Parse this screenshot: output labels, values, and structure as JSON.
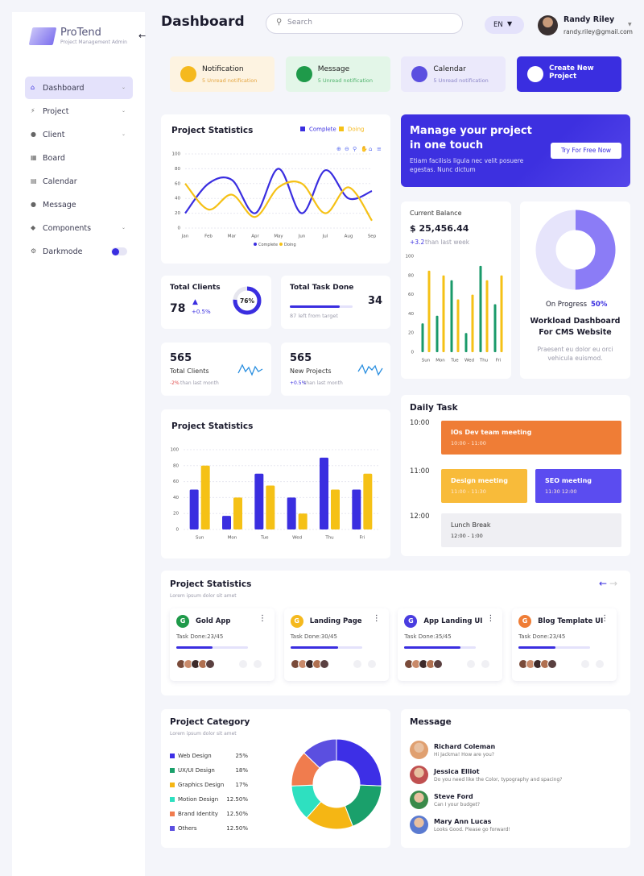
{
  "sidebar": {
    "logo": "ProTend",
    "logo_subtitle": "Project Management Admin",
    "nav": [
      "Dashboard",
      "Project",
      "Client",
      "Board",
      "Calendar",
      "Message",
      "Components",
      "Darkmode"
    ]
  },
  "header": {
    "title": "Dashboard",
    "search_placeholder": "Search",
    "language": "EN",
    "user_name": "Randy Riley",
    "user_email": "randy.riley@gmail.com"
  },
  "quick_cards": [
    {
      "title": "Notification",
      "subtitle": "5 Unread notification"
    },
    {
      "title": "Message",
      "subtitle": "5 Unread notification"
    },
    {
      "title": "Calendar",
      "subtitle": "5 Unread notification"
    },
    {
      "title": "Create New Project"
    }
  ],
  "banner": {
    "title": "Manage your project in one touch",
    "text": "Etiam facilisis ligula nec velit posuere egestas. Nunc dictum",
    "button": "Try For Free Now"
  },
  "stats": {
    "total_clients": {
      "title": "Total Clients",
      "value": 78,
      "change": "+0.5%",
      "percent": 76,
      "percent_label": "76%"
    },
    "task_done": {
      "title": "Total Task Done",
      "value": 34,
      "note": "87 left from target"
    },
    "clients_trend": {
      "value": 565,
      "title": "Total Clients",
      "change": "-2%",
      "note": "than last month"
    },
    "projects_trend": {
      "value": 565,
      "title": "New Projects",
      "change": "+0.5%",
      "note": "than last month"
    }
  },
  "balance": {
    "label": "Current Balance",
    "amount": "$ 25,456.44",
    "change": "+3.2",
    "note": "than last week"
  },
  "workload": {
    "status": "On Progress",
    "progress": 50,
    "progress_label": "50%",
    "title": "Workload Dashboard For CMS Website",
    "text": "Praesent eu dolor eu orci vehicula euismod."
  },
  "daily_task": {
    "title": "Daily Task",
    "times": [
      "10:00",
      "11:00",
      "12:00"
    ],
    "events": [
      {
        "title": "IOs Dev team meeting",
        "time": "10:00 - 11:00"
      },
      {
        "title": "Design meeting",
        "time": "11:00 - 11:30"
      },
      {
        "title": "SEO meeting",
        "time": "11:30 12:00"
      },
      {
        "title": "Lunch Break",
        "time": "12:00 - 1:00"
      }
    ]
  },
  "projects": {
    "title": "Project Statistics",
    "subtitle": "Lorem ipsum dolor sit amet",
    "cards": [
      {
        "initial": "G",
        "name": "Gold App",
        "task_label": "Task Done:23/45",
        "done": 23,
        "total": 45,
        "color": "#1f9a4a"
      },
      {
        "initial": "G",
        "name": "Landing Page",
        "task_label": "Task Done:30/45",
        "done": 30,
        "total": 45,
        "color": "#f5b91e"
      },
      {
        "initial": "G",
        "name": "App Landing UI",
        "task_label": "Task Done:35/45",
        "done": 35,
        "total": 45,
        "color": "#4a3de0"
      },
      {
        "initial": "G",
        "name": "Blog Template UI",
        "task_label": "Task Done:23/45",
        "done": 23,
        "total": 45,
        "color": "#ef7d36"
      }
    ]
  },
  "messages": {
    "title": "Message",
    "items": [
      {
        "name": "Richard Coleman",
        "text": "Hi Jackma! How are you?"
      },
      {
        "name": "Jessica Elliot",
        "text": "Do you need like the Color, typography and spacing?"
      },
      {
        "name": "Steve Ford",
        "text": "Can I your budget?"
      },
      {
        "name": "Mary Ann Lucas",
        "text": "Looks Good. Please go forward!"
      }
    ]
  },
  "chart_data": [
    {
      "type": "line",
      "title": "Project Statistics",
      "categories": [
        "Jan",
        "Feb",
        "Mar",
        "Apr",
        "May",
        "Jun",
        "Jul",
        "Aug",
        "Sep"
      ],
      "ylim": [
        0,
        100
      ],
      "yticks": [
        0,
        20,
        40,
        60,
        80,
        100
      ],
      "grid": true,
      "series": [
        {
          "name": "Complete",
          "color": "#3a2ee0",
          "values": [
            20,
            60,
            65,
            20,
            80,
            20,
            78,
            40,
            50
          ]
        },
        {
          "name": "Doing",
          "color": "#f5c116",
          "values": [
            60,
            25,
            45,
            15,
            55,
            60,
            20,
            55,
            10
          ]
        }
      ]
    },
    {
      "type": "bar",
      "categories": [
        "Sun",
        "Mon",
        "Tue",
        "Wed",
        "Thu",
        "Fri"
      ],
      "ylim": [
        0,
        100
      ],
      "yticks": [
        0,
        20,
        40,
        60,
        80,
        100
      ],
      "grid": false,
      "series": [
        {
          "color": "#1a9a6a",
          "values": [
            30,
            38,
            75,
            20,
            90,
            50
          ]
        },
        {
          "color": "#f5c116",
          "values": [
            85,
            80,
            55,
            60,
            75,
            80
          ]
        }
      ]
    },
    {
      "type": "bar",
      "title": "Project Statistics",
      "categories": [
        "Sun",
        "Mon",
        "Tue",
        "Wed",
        "Thu",
        "Fri"
      ],
      "ylim": [
        0,
        100
      ],
      "yticks": [
        0,
        20,
        40,
        60,
        80,
        100
      ],
      "grid": true,
      "series": [
        {
          "color": "#3a2ee0",
          "values": [
            50,
            17,
            70,
            40,
            90,
            50
          ]
        },
        {
          "color": "#f5c116",
          "values": [
            80,
            40,
            55,
            20,
            50,
            70
          ]
        }
      ]
    },
    {
      "type": "pie",
      "title": "Project Category",
      "subtitle": "Lorem ipsum dolor sit amet",
      "categories": [
        "Web Design",
        "UX/UI Design",
        "Graphics Design",
        "Motion Design",
        "Brand Identity",
        "Others"
      ],
      "values": [
        25,
        18,
        17,
        12.5,
        12.5,
        12.5
      ],
      "value_labels": [
        "25%",
        "18%",
        "17%",
        "12.50%",
        "12.50%",
        "12.50%"
      ],
      "colors": [
        "#3d2fe6",
        "#1aa06b",
        "#f5b614",
        "#2ee0c0",
        "#f07c4e",
        "#5b4fe0"
      ]
    }
  ]
}
